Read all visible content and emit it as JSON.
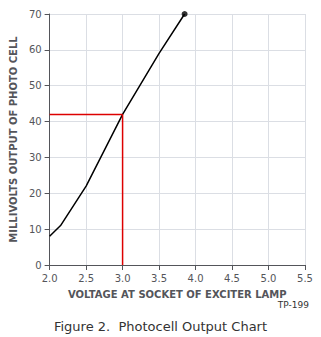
{
  "chart_data": {
    "type": "line",
    "title": "Figure 2.  Photocell Output Chart",
    "xlabel": "VOLTAGE AT SOCKET OF EXCITER LAMP",
    "ylabel": "MILLIVOLTS OUTPUT OF PHOTO CELL",
    "annotation": "TP-199",
    "xlim": [
      2.0,
      5.5
    ],
    "ylim": [
      0,
      70
    ],
    "xticks": [
      {
        "value": 2.0,
        "label": "2.0"
      },
      2.5,
      {
        "value": 3.0,
        "label": "3.0"
      },
      3.5,
      {
        "value": 4.0,
        "label": "4.0"
      },
      4.5,
      {
        "value": 5.0,
        "label": "5.0"
      },
      5.5
    ],
    "yticks": [
      0,
      10,
      20,
      30,
      40,
      50,
      60,
      70
    ],
    "grid": true,
    "series": [
      {
        "x": [
          2.0,
          2.15,
          2.5,
          3.0,
          3.5,
          3.85
        ],
        "values": [
          8,
          11,
          22,
          42,
          59,
          70
        ],
        "color": "#000000"
      },
      {
        "x": [
          2.0,
          3.0
        ],
        "values": [
          42,
          42
        ],
        "color": "#dd0000"
      },
      {
        "x": [
          3.0,
          3.0
        ],
        "values": [
          0,
          42
        ],
        "color": "#dd0000"
      },
      {
        "x": [
          3.85
        ],
        "values": [
          70
        ],
        "color": "#000000",
        "type": "scatter",
        "marker": "circle"
      }
    ]
  }
}
